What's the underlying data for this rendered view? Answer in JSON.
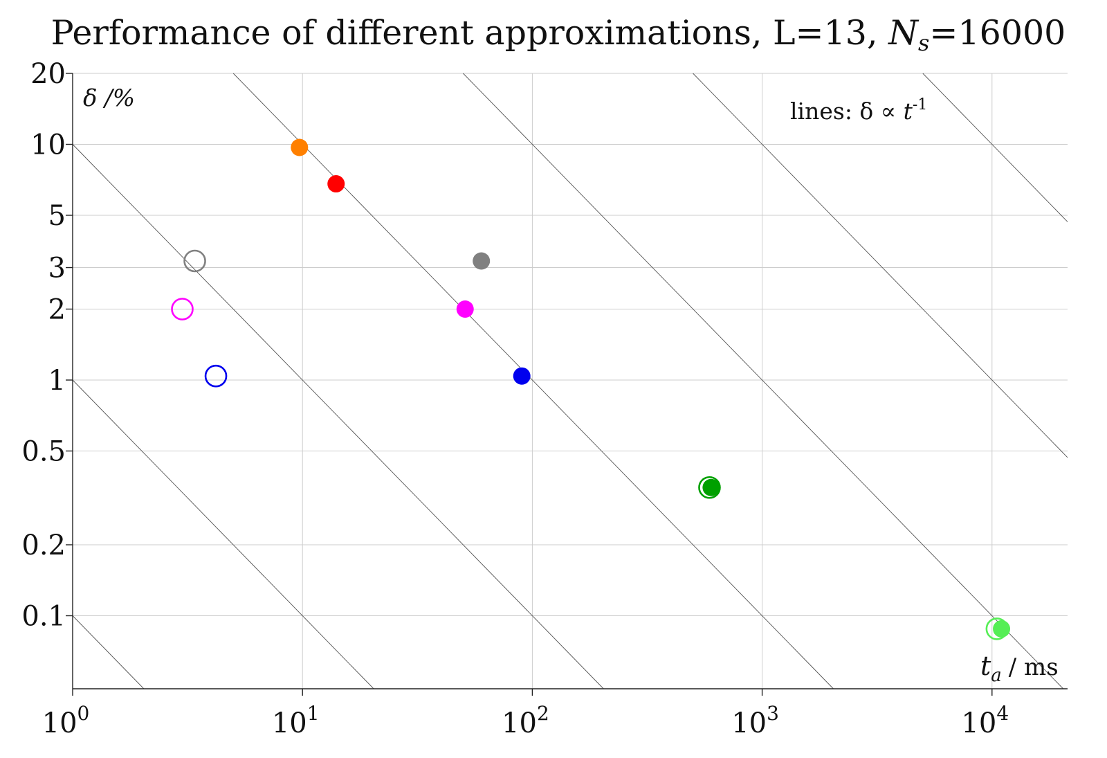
{
  "title": "Performance of different approximations",
  "subtitle": "L=13,",
  "sample_label": "N",
  "sample_sub": "s",
  "sample_value": "=16000",
  "chart_data": {
    "type": "scatter",
    "xscale": "log",
    "yscale": "log",
    "xlim": [
      1,
      21000
    ],
    "ylim": [
      0.05,
      20
    ],
    "x_ticks": [
      {
        "value": 1,
        "base": "10",
        "exp": "0"
      },
      {
        "value": 10,
        "base": "10",
        "exp": "1"
      },
      {
        "value": 100,
        "base": "10",
        "exp": "2"
      },
      {
        "value": 1000,
        "base": "10",
        "exp": "3"
      },
      {
        "value": 10000,
        "base": "10",
        "exp": "4"
      }
    ],
    "y_ticks": [
      {
        "value": 20,
        "label": "20"
      },
      {
        "value": 10,
        "label": "10"
      },
      {
        "value": 5,
        "label": "5"
      },
      {
        "value": 3,
        "label": "3"
      },
      {
        "value": 2,
        "label": "2"
      },
      {
        "value": 1,
        "label": "1"
      },
      {
        "value": 0.5,
        "label": "0.5"
      },
      {
        "value": 0.2,
        "label": "0.2"
      },
      {
        "value": 0.1,
        "label": "0.1"
      }
    ],
    "grid": true,
    "xlabel_main": "t",
    "xlabel_sub": "a",
    "xlabel_unit": "/ ms",
    "ylabel": "δ /%",
    "annotation_prefix": "lines: δ ∝ ",
    "annotation_var": "t",
    "annotation_exp": "-1",
    "reference_lines": [
      {
        "product": 0.1
      },
      {
        "product": 1
      },
      {
        "product": 10
      },
      {
        "product": 100
      },
      {
        "product": 1000
      },
      {
        "product": 10000
      },
      {
        "product": 100000
      }
    ],
    "points": [
      {
        "x": 3.4,
        "y": 3.2,
        "color": "#808080",
        "marker": "open"
      },
      {
        "x": 3.0,
        "y": 2.0,
        "color": "#ff00ff",
        "marker": "open"
      },
      {
        "x": 4.2,
        "y": 1.04,
        "color": "#0000ee",
        "marker": "open"
      },
      {
        "x": 9.7,
        "y": 9.7,
        "color": "#ff8000",
        "marker": "filled"
      },
      {
        "x": 14.0,
        "y": 6.8,
        "color": "#ff0000",
        "marker": "filled"
      },
      {
        "x": 60,
        "y": 3.2,
        "color": "#808080",
        "marker": "filled"
      },
      {
        "x": 51,
        "y": 2.0,
        "color": "#ff00ff",
        "marker": "filled"
      },
      {
        "x": 90,
        "y": 1.04,
        "color": "#0000ee",
        "marker": "filled"
      },
      {
        "x": 590,
        "y": 0.35,
        "color": "#00a000",
        "marker": "open"
      },
      {
        "x": 600,
        "y": 0.35,
        "color": "#00a000",
        "marker": "filled"
      },
      {
        "x": 10500,
        "y": 0.088,
        "color": "#55ee55",
        "marker": "open"
      },
      {
        "x": 11000,
        "y": 0.088,
        "color": "#55ee55",
        "marker": "filled"
      }
    ]
  }
}
